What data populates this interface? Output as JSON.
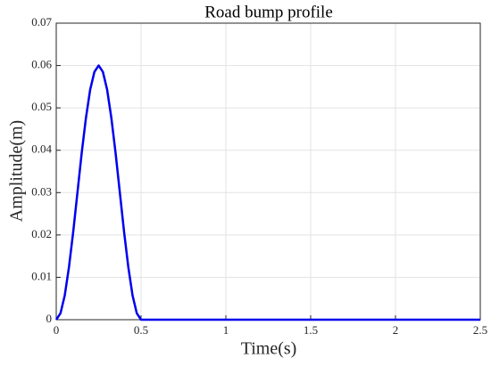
{
  "chart_data": {
    "type": "line",
    "title": "Road bump profile",
    "x_label": "Time(s)",
    "y_label": "Amplitude(m)",
    "x": [
      0,
      0.025,
      0.05,
      0.075,
      0.1,
      0.125,
      0.15,
      0.175,
      0.2,
      0.225,
      0.25,
      0.275,
      0.3,
      0.325,
      0.35,
      0.375,
      0.4,
      0.425,
      0.45,
      0.475,
      0.5,
      2.5
    ],
    "series": [
      {
        "color": "#0000ee",
        "values": [
          0,
          0.0015,
          0.0057,
          0.0124,
          0.0207,
          0.03,
          0.0393,
          0.0476,
          0.0543,
          0.0585,
          0.06,
          0.0585,
          0.0543,
          0.0476,
          0.0393,
          0.03,
          0.0207,
          0.0124,
          0.0057,
          0.0015,
          0,
          0
        ]
      }
    ],
    "xlim": [
      0,
      2.5
    ],
    "xticks": [
      0,
      0.5,
      1,
      1.5,
      2,
      2.5
    ],
    "ylim": [
      0,
      0.07
    ],
    "yticks": [
      0,
      0.01,
      0.02,
      0.03,
      0.04,
      0.05,
      0.06,
      0.07
    ],
    "grid": true
  }
}
